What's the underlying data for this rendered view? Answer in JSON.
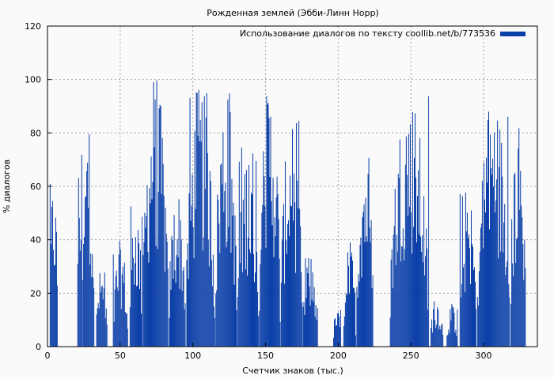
{
  "chart_data": {
    "type": "bar",
    "title": "Рожденная землей (Эбби-Линн Норр)",
    "xlabel": "Счетчик знаков (тыс.)",
    "ylabel": "% диалогов",
    "xlim": [
      0,
      337
    ],
    "ylim": [
      0,
      120
    ],
    "xticks": [
      0,
      50,
      100,
      150,
      200,
      250,
      300
    ],
    "yticks": [
      0,
      20,
      40,
      60,
      80,
      100,
      120
    ],
    "grid": true,
    "legend_position": "top-right",
    "series": [
      {
        "name": "Использование диалогов по тексту coollib.net/b/773536",
        "color": "#0b3fa8",
        "segments": [
          {
            "x_start": 1,
            "x_end": 7,
            "peak": 64
          },
          {
            "x_start": 20,
            "x_end": 24,
            "peak": 78
          },
          {
            "x_start": 24,
            "x_end": 32,
            "peak": 87
          },
          {
            "x_start": 33,
            "x_end": 41,
            "peak": 30
          },
          {
            "x_start": 45,
            "x_end": 55,
            "peak": 40
          },
          {
            "x_start": 56,
            "x_end": 65,
            "peak": 55
          },
          {
            "x_start": 65,
            "x_end": 83,
            "peak": 100
          },
          {
            "x_start": 83,
            "x_end": 95,
            "peak": 60
          },
          {
            "x_start": 95,
            "x_end": 115,
            "peak": 98
          },
          {
            "x_start": 115,
            "x_end": 130,
            "peak": 98
          },
          {
            "x_start": 130,
            "x_end": 145,
            "peak": 75
          },
          {
            "x_start": 145,
            "x_end": 160,
            "peak": 100
          },
          {
            "x_start": 160,
            "x_end": 175,
            "peak": 85
          },
          {
            "x_start": 175,
            "x_end": 186,
            "peak": 35
          },
          {
            "x_start": 196,
            "x_end": 202,
            "peak": 14
          },
          {
            "x_start": 203,
            "x_end": 212,
            "peak": 40
          },
          {
            "x_start": 212,
            "x_end": 224,
            "peak": 76
          },
          {
            "x_start": 235,
            "x_end": 262,
            "peak": 96
          },
          {
            "x_start": 263,
            "x_end": 272,
            "peak": 19
          },
          {
            "x_start": 274,
            "x_end": 282,
            "peak": 16
          },
          {
            "x_start": 283,
            "x_end": 295,
            "peak": 58
          },
          {
            "x_start": 295,
            "x_end": 318,
            "peak": 94
          },
          {
            "x_start": 318,
            "x_end": 329,
            "peak": 83
          }
        ]
      }
    ]
  }
}
